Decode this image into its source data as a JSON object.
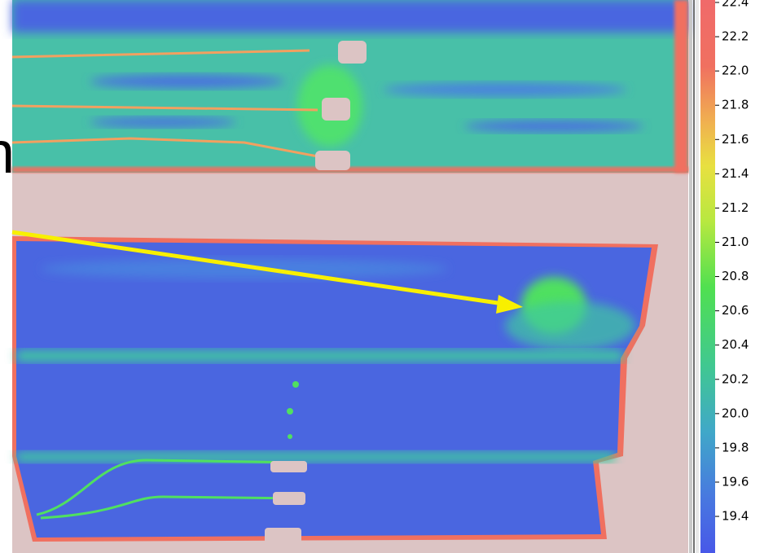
{
  "caption_fragment": "n",
  "colorbar": {
    "labels": [
      "22.4",
      "22.2",
      "22.0",
      "21.8",
      "21.6",
      "21.4",
      "21.2",
      "21.0",
      "20.8",
      "20.6",
      "20.4",
      "20.2",
      "20.0",
      "19.8",
      "19.6",
      "19.4"
    ]
  }
}
